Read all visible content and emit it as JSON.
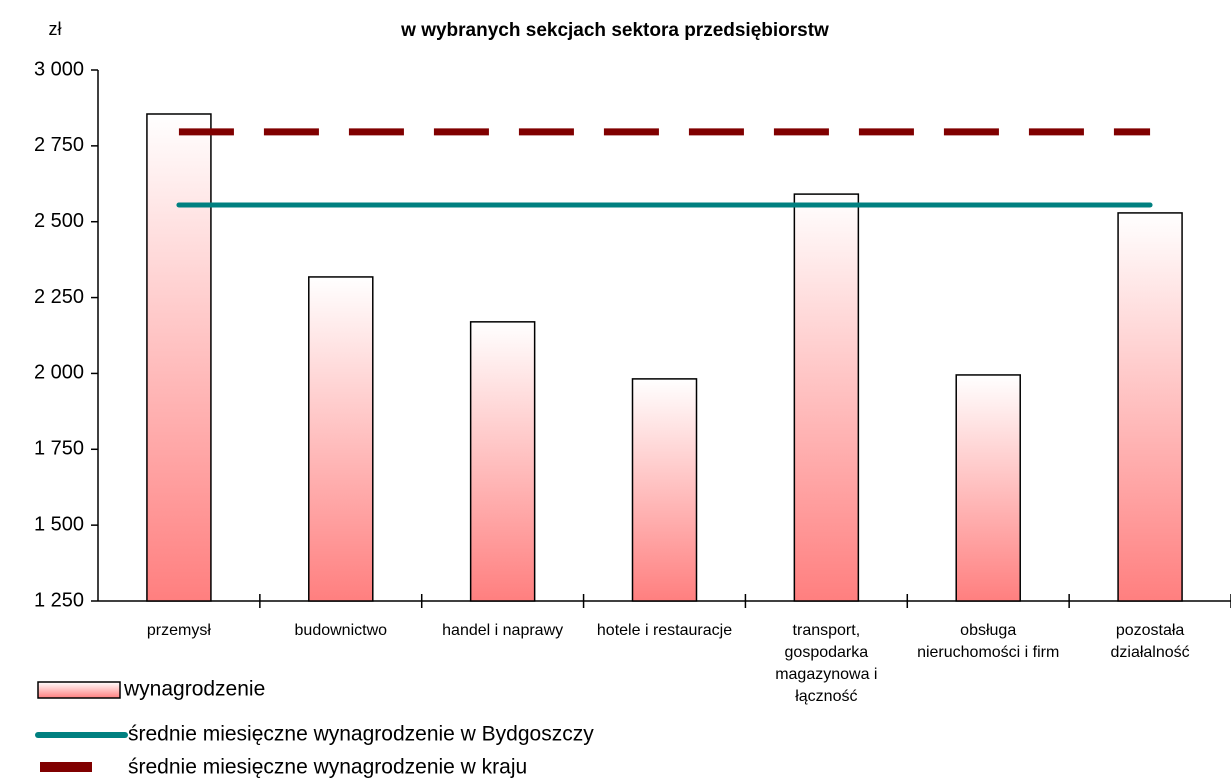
{
  "chart_data": {
    "type": "bar",
    "title": "w wybranych sekcjach sektora przedsiębiorstw",
    "y_label": "zł",
    "categories": [
      "przemysł",
      "budownictwo",
      "handel i naprawy",
      "hotele i restauracje",
      "transport, gospodarka magazynowa i łączność",
      "obsługa nieruchomości i firm",
      "pozostała działalność"
    ],
    "series": [
      {
        "name": "wynagrodzenie",
        "color": "#ff7f7f",
        "values": [
          2855,
          2318,
          2170,
          1982,
          2591,
          1995,
          2529
        ]
      },
      {
        "name": "średnie miesięczne wynagrodzenie w Bydgoszczy",
        "color": "#008080",
        "value": 2555,
        "dash": false
      },
      {
        "name": "średnie miesięczne wynagrodzenie w kraju",
        "color": "#800000",
        "value": 2796,
        "dash": true
      }
    ],
    "ylim": [
      1250,
      3000
    ],
    "yticks": [
      {
        "value": 1250,
        "label": "1 250"
      },
      {
        "value": 1500,
        "label": "1 500"
      },
      {
        "value": 1750,
        "label": "1 750"
      },
      {
        "value": 2000,
        "label": "2 000"
      },
      {
        "value": 2250,
        "label": "2 250"
      },
      {
        "value": 2500,
        "label": "2 500"
      },
      {
        "value": 2750,
        "label": "2 750"
      },
      {
        "value": 3000,
        "label": "3 000"
      }
    ]
  }
}
